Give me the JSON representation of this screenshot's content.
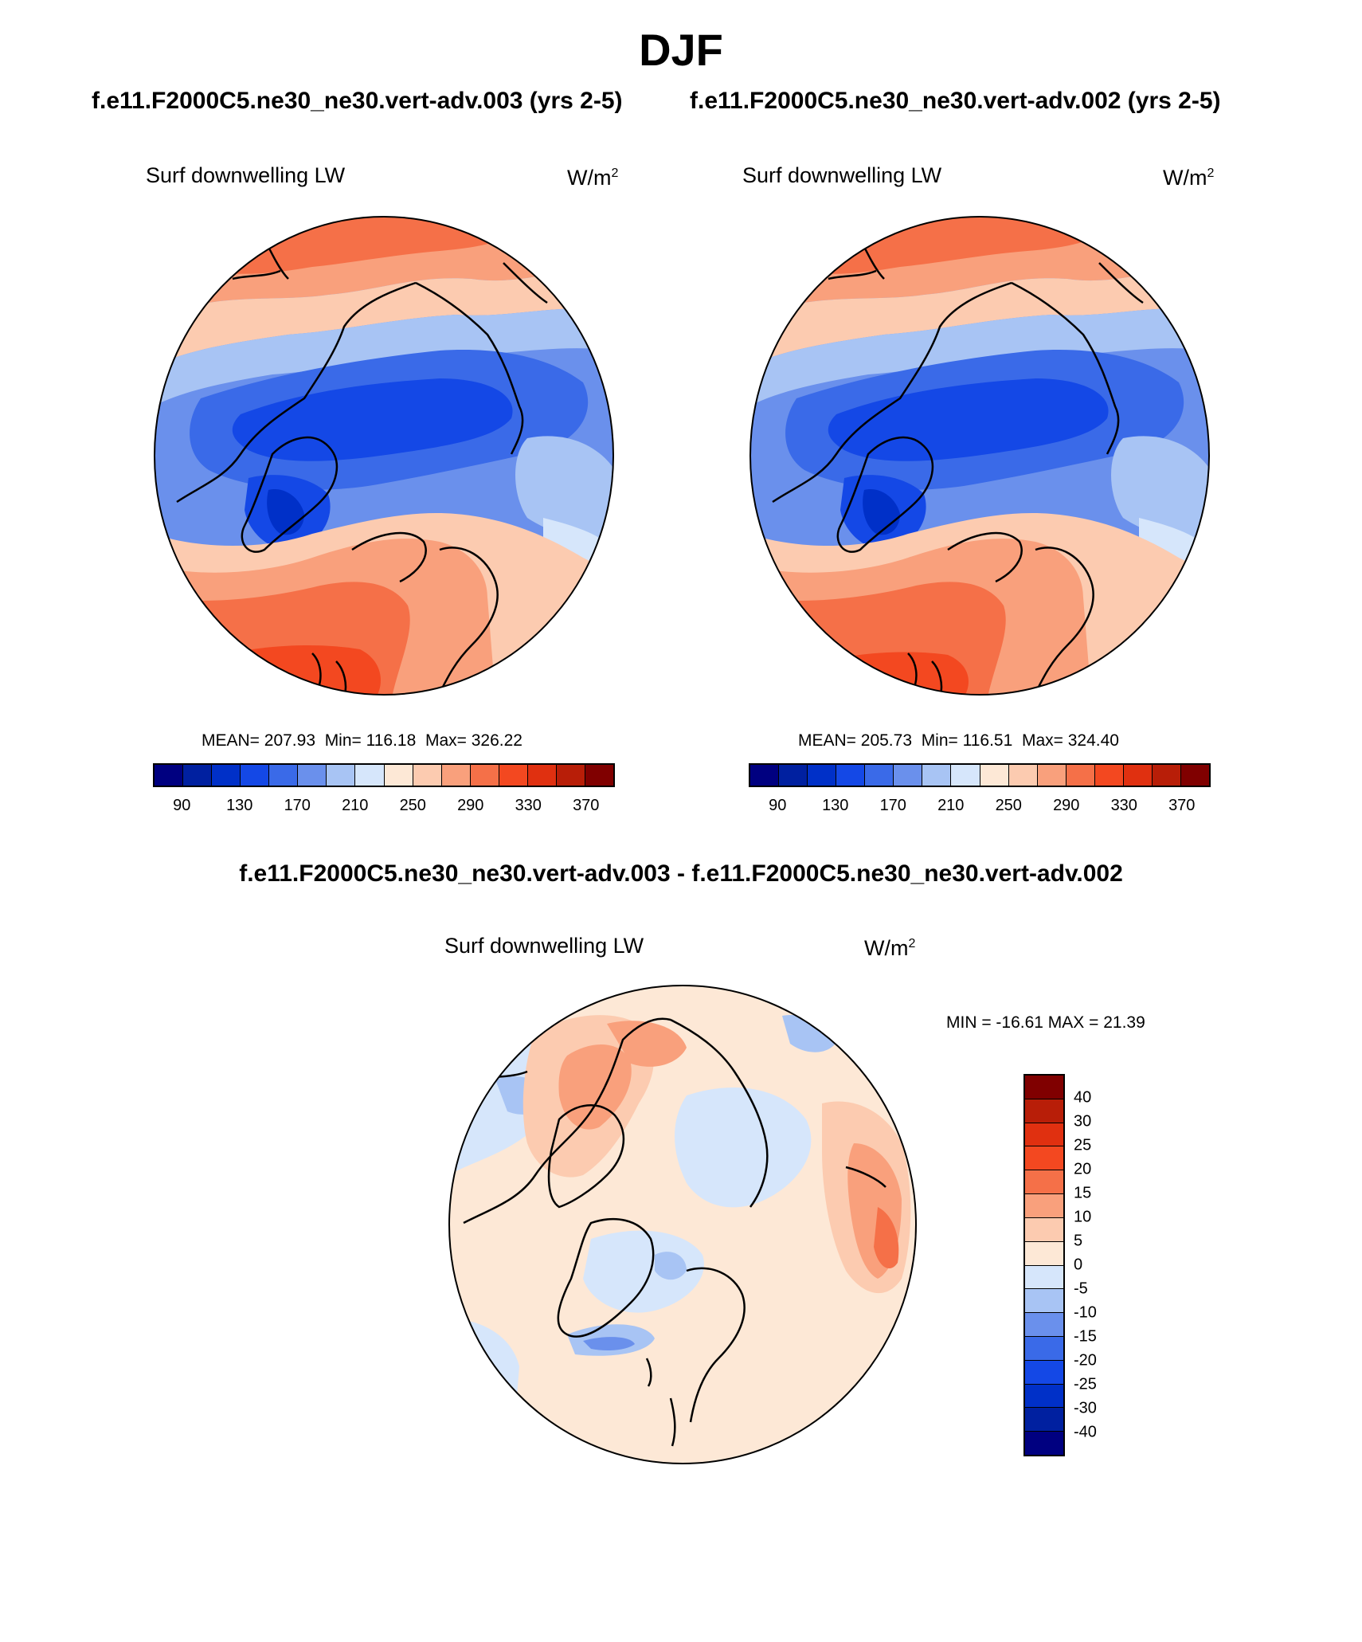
{
  "season": "DJF",
  "panel_left": {
    "case_title": "f.e11.F2000C5.ne30_ne30.vert-adv.003 (yrs 2-5)",
    "variable": "Surf downwelling LW",
    "units_base": "W/m",
    "units_exp": "2",
    "mean_label": "MEAN= 207.93",
    "min_label": "Min= 116.18",
    "max_label": "Max= 326.22"
  },
  "panel_right": {
    "case_title": "f.e11.F2000C5.ne30_ne30.vert-adv.002 (yrs 2-5)",
    "variable": "Surf downwelling LW",
    "units_base": "W/m",
    "units_exp": "2",
    "mean_label": "MEAN= 205.73",
    "min_label": "Min= 116.51",
    "max_label": "Max= 324.40"
  },
  "panel_diff": {
    "title": "f.e11.F2000C5.ne30_ne30.vert-adv.003 - f.e11.F2000C5.ne30_ne30.vert-adv.002",
    "variable": "Surf downwelling LW",
    "units_base": "W/m",
    "units_exp": "2",
    "minmax_label": "MIN = -16.61 MAX =  21.39"
  },
  "colorbar_abs": {
    "colors": [
      "#000080",
      "#0020a0",
      "#0030c8",
      "#1448e6",
      "#3a6ae8",
      "#6a90ec",
      "#a8c4f4",
      "#d6e6fb",
      "#fde8d6",
      "#fccbb0",
      "#f9a07c",
      "#f57048",
      "#f34820",
      "#e03010",
      "#b81e08",
      "#800000"
    ],
    "tick_labels": [
      "90",
      "130",
      "170",
      "210",
      "250",
      "290",
      "330",
      "370"
    ]
  },
  "colorbar_diff": {
    "colors": [
      "#800000",
      "#b81e08",
      "#e03010",
      "#f34820",
      "#f57048",
      "#f9a07c",
      "#fccbb0",
      "#fde8d6",
      "#d6e6fb",
      "#a8c4f4",
      "#6a90ec",
      "#3a6ae8",
      "#1448e6",
      "#0030c8",
      "#0020a0",
      "#000080"
    ],
    "tick_labels": [
      "40",
      "30",
      "25",
      "20",
      "15",
      "10",
      "5",
      "0",
      "-5",
      "-10",
      "-15",
      "-20",
      "-25",
      "-30",
      "-40"
    ]
  }
}
